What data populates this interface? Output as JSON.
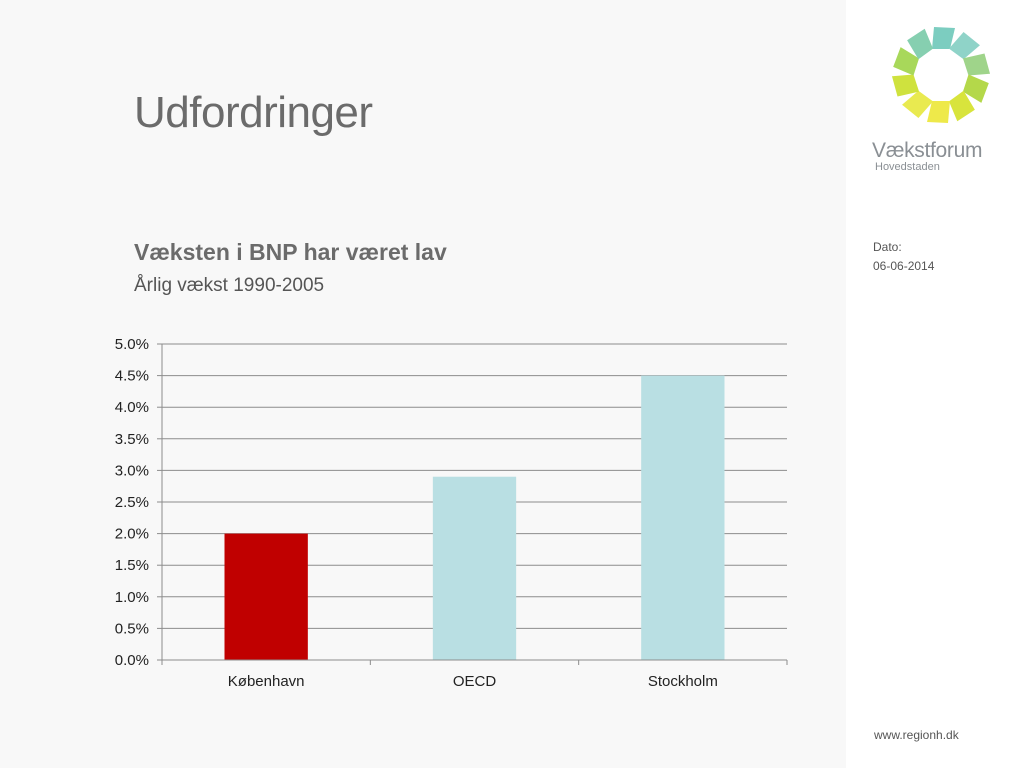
{
  "slide": {
    "title": "Udfordringer",
    "heading": "Væksten i BNP har været lav",
    "subheading": "Årlig vækst 1990-2005"
  },
  "sidebar": {
    "logo_name": "Vækstforum",
    "logo_sub": "Hovedstaden",
    "date_label": "Dato:",
    "date_value": "06-06-2014",
    "website": "www.regionh.dk"
  },
  "chart_data": {
    "type": "bar",
    "categories": [
      "København",
      "OECD",
      "Stockholm"
    ],
    "values": [
      0.02,
      0.029,
      0.045
    ],
    "bar_colors": [
      "#c00000",
      "#b9dfe3",
      "#b9dfe3"
    ],
    "title": "",
    "xlabel": "",
    "ylabel": "",
    "ylim": [
      0,
      0.05
    ],
    "yticks": [
      "0.0%",
      "0.5%",
      "1.0%",
      "1.5%",
      "2.0%",
      "2.5%",
      "3.0%",
      "3.5%",
      "4.0%",
      "4.5%",
      "5.0%"
    ],
    "grid": true,
    "legend": "none"
  },
  "colors": {
    "accent_red": "#c00000",
    "bar_blue": "#b9dfe3",
    "title_gray": "#6b6b6b"
  }
}
